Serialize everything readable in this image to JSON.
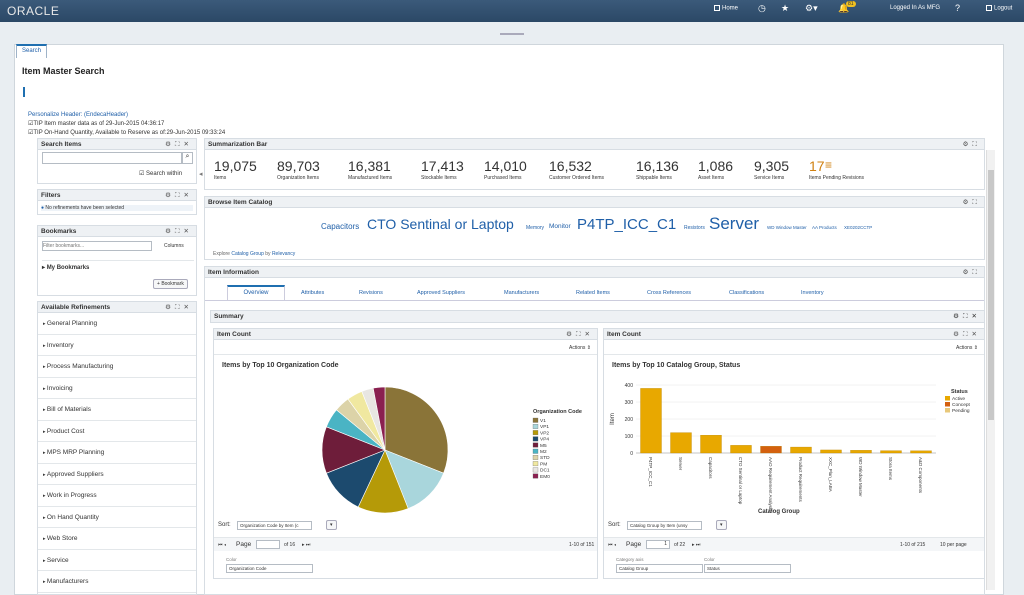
{
  "header": {
    "logo": "ORACLE",
    "home": "Home",
    "notif_count": "81",
    "logged_in": "Logged In As MFG",
    "logout": "Logout",
    "brand_color": "#2b4866"
  },
  "tab": "Search",
  "page_title": "Item Master Search",
  "personalize": "Personalize Header: (EndecaHeader)",
  "tip1": "TIP Item master data as of ",
  "tip1_date": "29-Jun-2015 04:36:17",
  "tip2": "TIP On-Hand Quantity, Available to Reserve as of:",
  "tip2_date": "29-Jun-2015 09:33:24",
  "search_items": {
    "title": "Search Items",
    "within": "Search within"
  },
  "filters": {
    "title": "Filters",
    "msg": "No refinements have been selected"
  },
  "bookmarks": {
    "title": "Bookmarks",
    "placeholder": "Filter bookmarks...",
    "columns": "Columns",
    "my": "My Bookmarks",
    "add": "Bookmark"
  },
  "refinements": {
    "title": "Available Refinements",
    "items": [
      "General Planning",
      "Inventory",
      "Process Manufacturing",
      "Invoicing",
      "Bill of Materials",
      "Product Cost",
      "MPS MRP Planning",
      "Approved Suppliers",
      "Work in Progress",
      "On Hand Quantity",
      "Web Store",
      "Service",
      "Manufacturers"
    ]
  },
  "summ": {
    "title": "Summarization Bar",
    "stats": [
      {
        "n": "19,075",
        "l": "Items"
      },
      {
        "n": "89,703",
        "l": "Organization Items"
      },
      {
        "n": "16,381",
        "l": "Manufactured Items"
      },
      {
        "n": "17,413",
        "l": "Stockable Items"
      },
      {
        "n": "14,010",
        "l": "Purchased Items"
      },
      {
        "n": "16,532",
        "l": "Customer Ordered Items"
      },
      {
        "n": "16,136",
        "l": "Shippable Items"
      },
      {
        "n": "1,086",
        "l": "Asset Items"
      },
      {
        "n": "9,305",
        "l": "Service Items"
      },
      {
        "n": "17",
        "l": "Items Pending Revisions"
      }
    ]
  },
  "catalog": {
    "title": "Browse Item Catalog",
    "tags": [
      "Capacitors",
      "CTO Sentinal or Laptop",
      "Memory",
      "Monitor",
      "P4TP_ICC_C1",
      "Resistors",
      "Server",
      "WD Window Master",
      "AA Products",
      "XE0202CCTP"
    ],
    "explore": "Explore",
    "cg": "Catalog Group",
    "by": "by",
    "rel": "Relevancy"
  },
  "info": {
    "title": "Item Information",
    "tabs": [
      "Overview",
      "Attributes",
      "Revisions",
      "Approved Suppliers",
      "Manufacturers",
      "Related Items",
      "Cross References",
      "Classifications",
      "Inventory"
    ]
  },
  "summary_title": "Summary",
  "pie": {
    "panel": "Item Count",
    "actions": "Actions",
    "sort": "Sort:",
    "sort_val": "Organization Code by Item (c",
    "page": "Page",
    "of": "of 16",
    "range": "1-10 of 151",
    "color": "Color",
    "color_val": "Organization Code"
  },
  "bar": {
    "panel": "Item Count",
    "actions": "Actions",
    "sort": "Sort:",
    "sort_val": "Catalog Group by Item (unsy",
    "page": "Page",
    "pg": "1",
    "of": "of 22",
    "range": "1-10 of 215",
    "per": "10 per page",
    "cat_axis": "Category axis",
    "cat_val": "Catalog Group",
    "color": "Color",
    "color_val": "Status"
  },
  "chart_data": [
    {
      "type": "pie",
      "title": "Items by Top 10 Organization Code",
      "legend_title": "Organization Code",
      "categories": [
        "V1",
        "VP1",
        "VP2",
        "VP4",
        "M5",
        "M2",
        "STD",
        "PM",
        "DC1",
        "EM0"
      ],
      "values": [
        31,
        13,
        13,
        12,
        12,
        5,
        4,
        4,
        3,
        3
      ],
      "colors": [
        "#8a7438",
        "#a9d6dc",
        "#b59a08",
        "#1c4a6e",
        "#6e1d3a",
        "#4ab4c4",
        "#dcd3a8",
        "#f0e8a0",
        "#e8e6e2",
        "#8a2050"
      ]
    },
    {
      "type": "bar",
      "title": "Items by Top 10 Catalog Group, Status",
      "xlabel": "Catalog Group",
      "ylabel": "Item",
      "legend_title": "Status",
      "categories": [
        "P4TP_ICC_C1",
        "Server",
        "Capacitors",
        "CTO Sentinal or Laptop",
        "AAO Requirement Analysis",
        "Product Requirements",
        "XXC_Plan_LABA",
        "WD Window Master",
        "Stora Items",
        "A&D Components"
      ],
      "series": [
        {
          "name": "Active",
          "values": [
            380,
            120,
            105,
            45,
            0,
            35,
            18,
            16,
            14,
            13
          ]
        },
        {
          "name": "Concept",
          "values": [
            0,
            0,
            0,
            0,
            40,
            0,
            0,
            0,
            0,
            0
          ]
        },
        {
          "name": "Pending",
          "values": [
            0,
            0,
            0,
            0,
            0,
            0,
            0,
            0,
            0,
            0
          ]
        }
      ],
      "colors": [
        "#e8a800",
        "#d4600f",
        "#e8c87a"
      ],
      "ylim": [
        0,
        400
      ],
      "yticks": [
        0,
        100,
        200,
        300,
        400
      ]
    }
  ]
}
